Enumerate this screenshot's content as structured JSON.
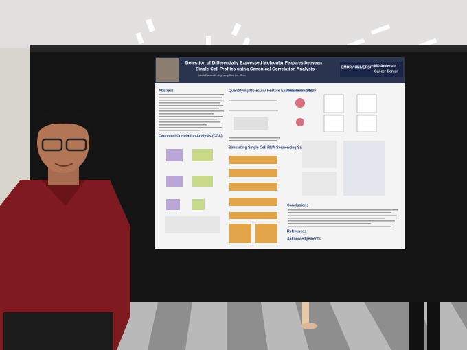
{
  "poster": {
    "title_line1": "Detection of Differentially Expressed Molecular Features between",
    "title_line2": "Single-Cell Profiles using Canonical Correlation Analysis",
    "authors": "Satvik Elayavalli, Jinghuang Dou, Ken Chen",
    "logo_left": "EMORY UNIVERSITY",
    "logo_right_1": "MD Anderson",
    "logo_right_2": "Cancer Center",
    "sections": {
      "abstract": "Abstract",
      "cca": "Canonical Correlation Analysis (CCA)",
      "quantifying": "Quantifying Molecular Feature Expression in CVs",
      "simulating": "Simulating Single-Cell RNA-Sequencing Samples",
      "simulation_study": "Simulation Study",
      "conclusions": "Conclusions",
      "acknowledgements": "Acknowledgements",
      "references": "References"
    }
  }
}
